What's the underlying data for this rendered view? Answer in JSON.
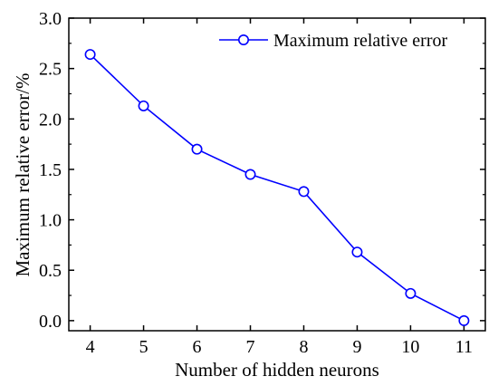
{
  "chart_data": {
    "type": "line",
    "title": "",
    "xlabel": "Number of hidden neurons",
    "ylabel": "Maximum relative error/%",
    "x": [
      4,
      5,
      6,
      7,
      8,
      9,
      10,
      11
    ],
    "x_ticks": [
      "4",
      "5",
      "6",
      "7",
      "8",
      "9",
      "10",
      "11"
    ],
    "y_ticks": [
      "0.0",
      "0.5",
      "1.0",
      "1.5",
      "2.0",
      "2.5",
      "3.0"
    ],
    "xlim": [
      3.6,
      11.4
    ],
    "ylim": [
      -0.1,
      3.0
    ],
    "grid": false,
    "legend_position": "top-right",
    "series": [
      {
        "name": "Maximum relative error",
        "color": "#0000ff",
        "marker": "open-circle",
        "values": [
          2.64,
          2.13,
          1.7,
          1.45,
          1.28,
          0.68,
          0.27,
          0.0
        ]
      }
    ]
  }
}
